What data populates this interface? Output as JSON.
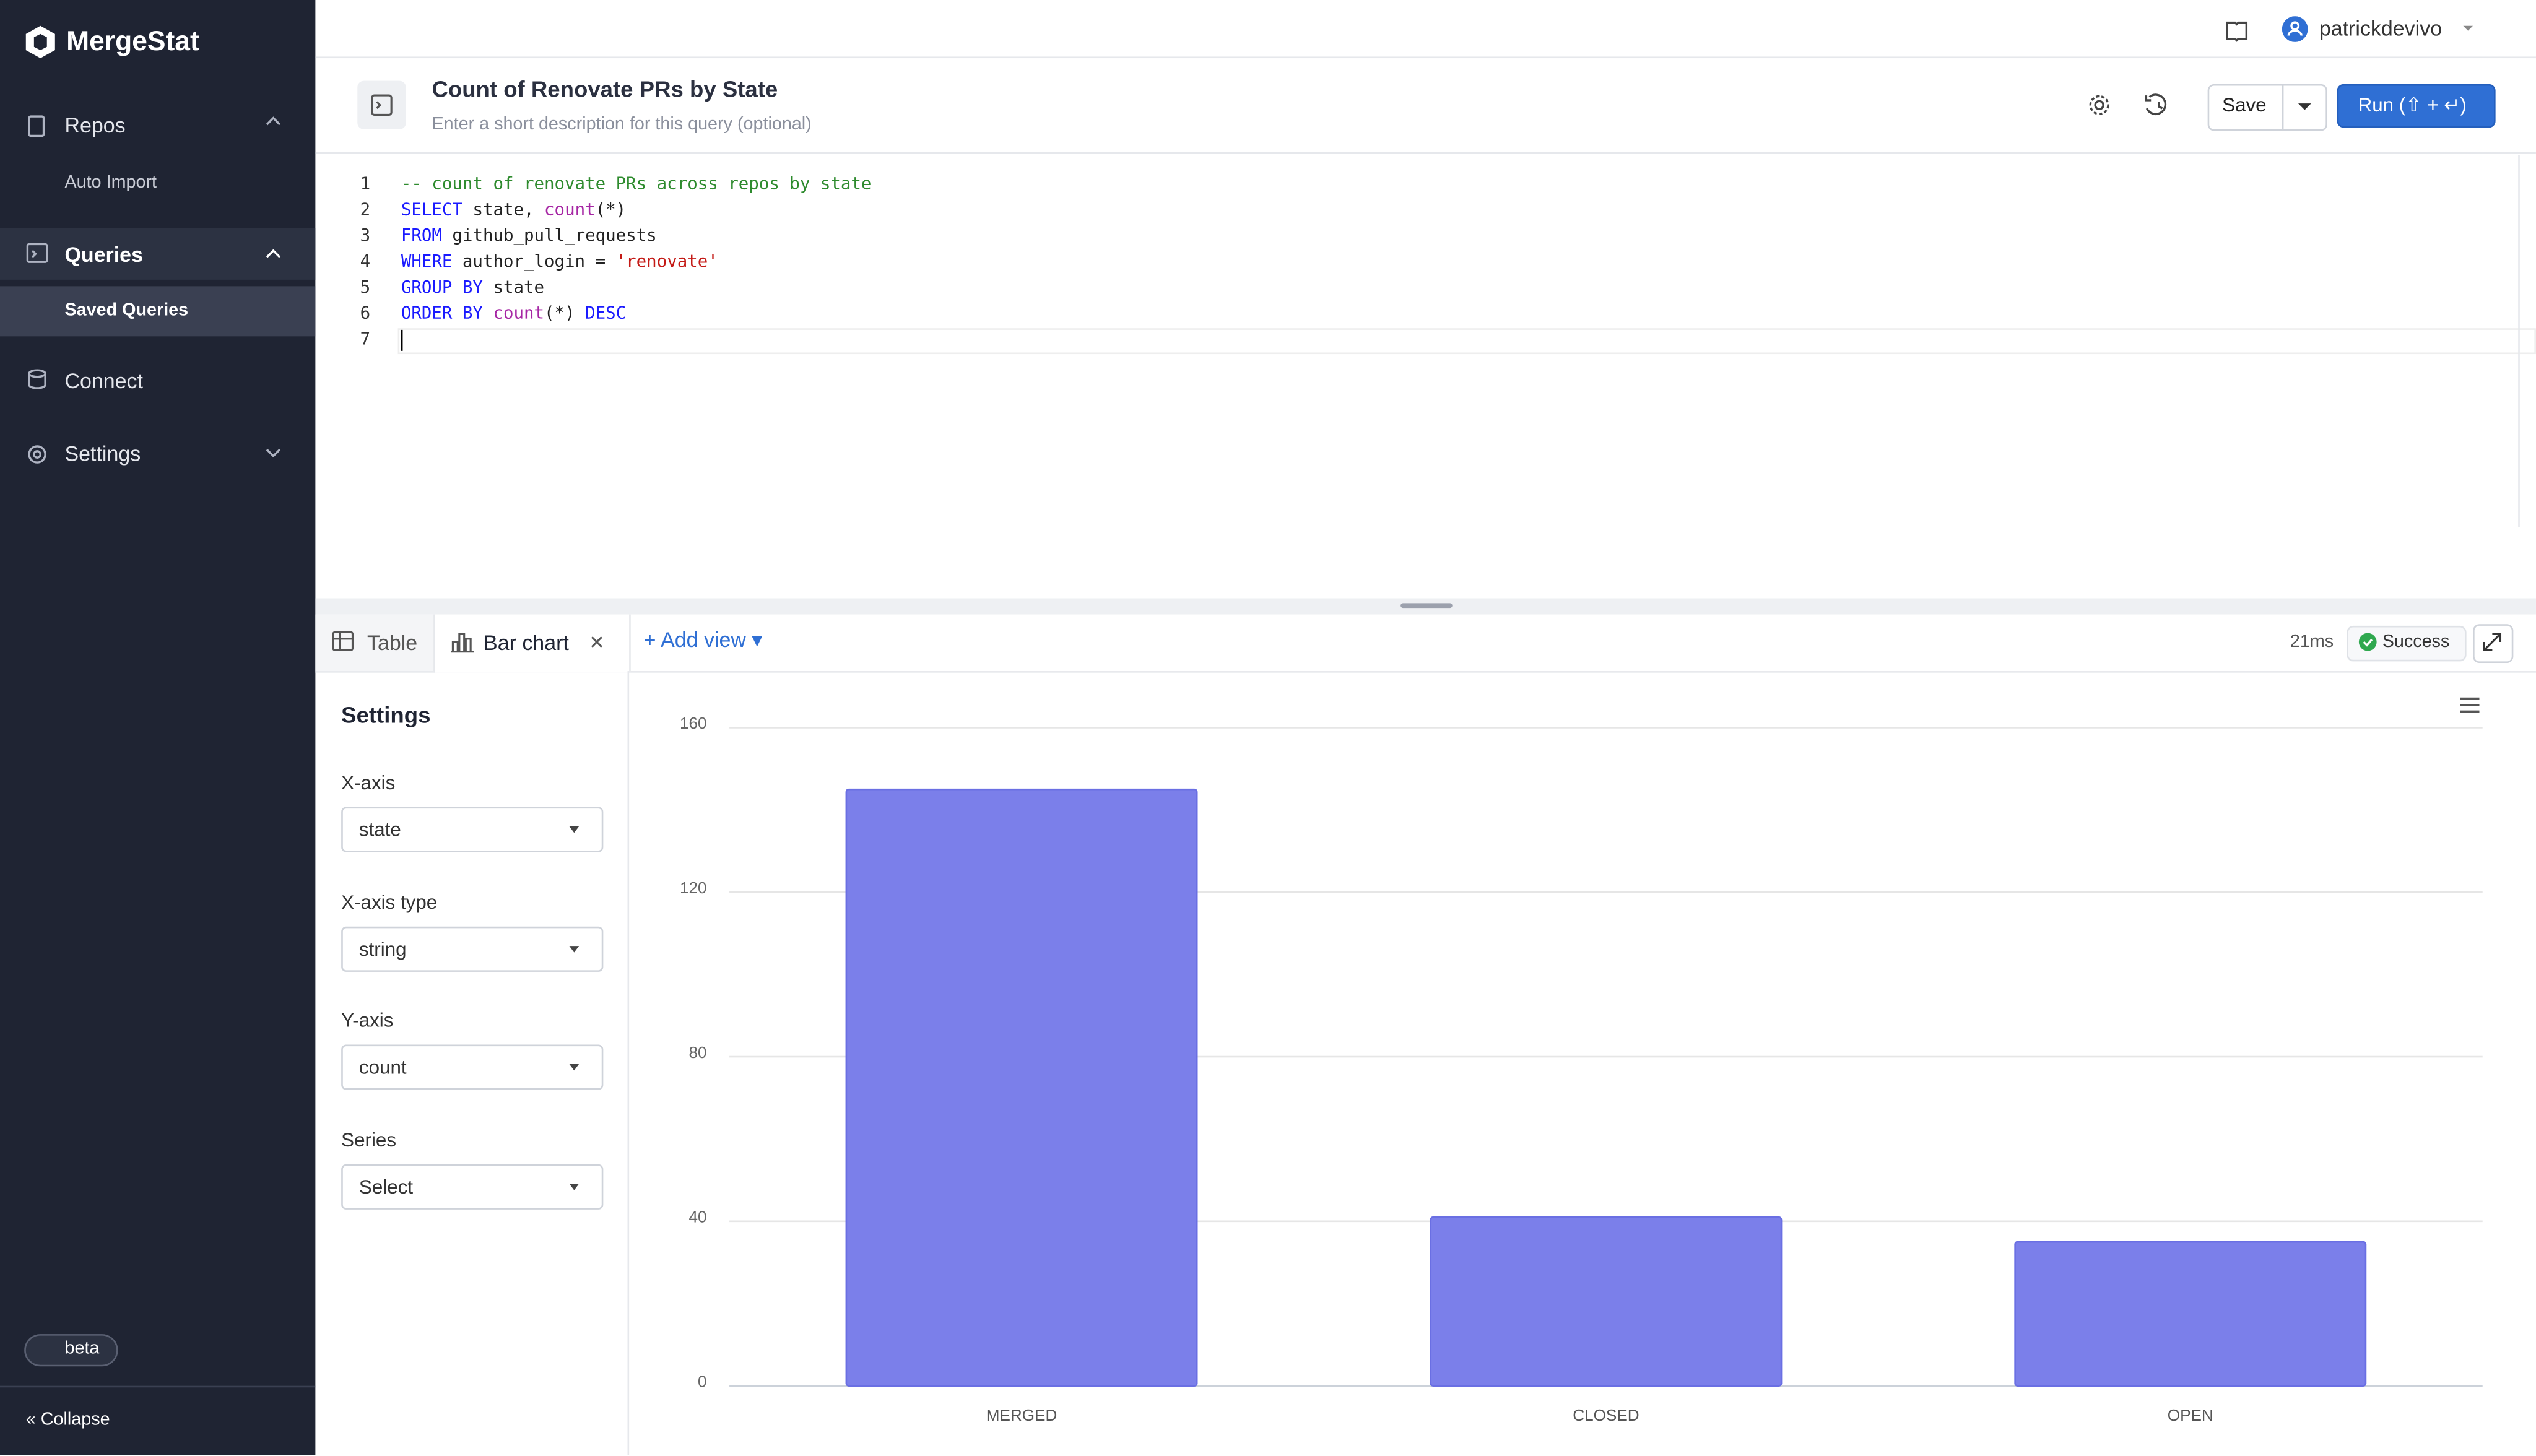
{
  "sidebar": {
    "brand": "MergeStat",
    "nav": [
      "Repos",
      "Auto Import",
      "Queries",
      "Saved Queries",
      "Connect",
      "Settings"
    ],
    "badge": "beta",
    "collapse": "Collapse"
  },
  "topbar": {
    "user": "patrickdevivo"
  },
  "query": {
    "title": "Count of Renovate PRs by State",
    "description": "Enter a short description for this query (optional)",
    "save": "Save",
    "run": "Run (⇧ + ↵)"
  },
  "editor": {
    "line_numbers": [
      1,
      2,
      3,
      4,
      5,
      6,
      7
    ],
    "lines": [
      [
        {
          "text": "-- count of renovate PRs across repos by state",
          "color": "#2e8b2e"
        }
      ],
      [
        {
          "text": "SELECT",
          "color": "#1a1aff"
        },
        {
          "text": " state, ",
          "color": "#222222"
        },
        {
          "text": "count",
          "color": "#a626a4"
        },
        {
          "text": "(*)",
          "color": "#222222"
        }
      ],
      [
        {
          "text": "FROM",
          "color": "#1a1aff"
        },
        {
          "text": " github_pull_requests",
          "color": "#222222"
        }
      ],
      [
        {
          "text": "WHERE",
          "color": "#1a1aff"
        },
        {
          "text": " author_login = ",
          "color": "#222222"
        },
        {
          "text": "'renovate'",
          "color": "#c41a16"
        }
      ],
      [
        {
          "text": "GROUP BY",
          "color": "#1a1aff"
        },
        {
          "text": " state",
          "color": "#222222"
        }
      ],
      [
        {
          "text": "ORDER BY",
          "color": "#1a1aff"
        },
        {
          "text": " ",
          "color": "#222222"
        },
        {
          "text": "count",
          "color": "#a626a4"
        },
        {
          "text": "(*) ",
          "color": "#222222"
        },
        {
          "text": "DESC",
          "color": "#1a1aff"
        }
      ],
      []
    ]
  },
  "results": {
    "tabs": [
      "Table",
      "Bar chart"
    ],
    "add_view": "Add view",
    "duration": "21ms",
    "status": "Success"
  },
  "settings": {
    "title": "Settings",
    "fields": [
      {
        "label": "X-axis",
        "value": "state"
      },
      {
        "label": "X-axis type",
        "value": "string"
      },
      {
        "label": "Y-axis",
        "value": "count"
      },
      {
        "label": "Series",
        "value": "Select"
      }
    ]
  },
  "chart_data": {
    "type": "bar",
    "categories": [
      "MERGED",
      "CLOSED",
      "OPEN"
    ],
    "values": [
      145,
      41,
      35
    ],
    "color": "#7b7fea",
    "ylim": [
      0,
      160
    ],
    "yticks": [
      0,
      40,
      80,
      120,
      160
    ],
    "grid": true
  }
}
